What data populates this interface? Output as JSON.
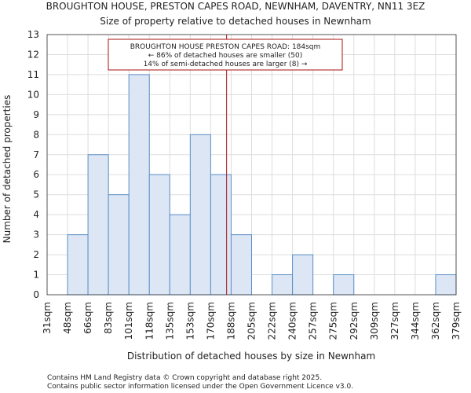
{
  "chart_data": {
    "type": "bar",
    "title": "BROUGHTON HOUSE, PRESTON CAPES ROAD, NEWNHAM, DAVENTRY, NN11 3EZ",
    "subtitle": "Size of property relative to detached houses in Newnham",
    "xlabel": "Distribution of detached houses by size in Newnham",
    "ylabel": "Number of detached properties",
    "bin_edges": [
      "31sqm",
      "48sqm",
      "66sqm",
      "83sqm",
      "101sqm",
      "118sqm",
      "135sqm",
      "153sqm",
      "170sqm",
      "188sqm",
      "205sqm",
      "222sqm",
      "240sqm",
      "257sqm",
      "275sqm",
      "292sqm",
      "309sqm",
      "327sqm",
      "344sqm",
      "362sqm",
      "379sqm"
    ],
    "values": [
      0,
      3,
      7,
      5,
      11,
      6,
      4,
      8,
      6,
      3,
      0,
      1,
      2,
      0,
      1,
      0,
      0,
      0,
      0,
      1
    ],
    "yticks": [
      0,
      1,
      2,
      3,
      4,
      5,
      6,
      7,
      8,
      9,
      10,
      11,
      12,
      13
    ],
    "ylim": [
      0,
      13
    ],
    "grid": "both",
    "bar_color": "#dce6f5",
    "bar_edge_color": "#5b8fc7",
    "marker": {
      "value": 184,
      "unit": "sqm",
      "color": "#aa1111"
    },
    "annotation": {
      "lines": [
        "BROUGHTON HOUSE PRESTON CAPES ROAD: 184sqm",
        "← 86% of detached houses are smaller (50)",
        "14% of semi-detached houses are larger (8) →"
      ],
      "border_color": "#aa1111"
    }
  },
  "footer": {
    "line1": "Contains HM Land Registry data © Crown copyright and database right 2025.",
    "line2": "Contains public sector information licensed under the Open Government Licence v3.0."
  }
}
